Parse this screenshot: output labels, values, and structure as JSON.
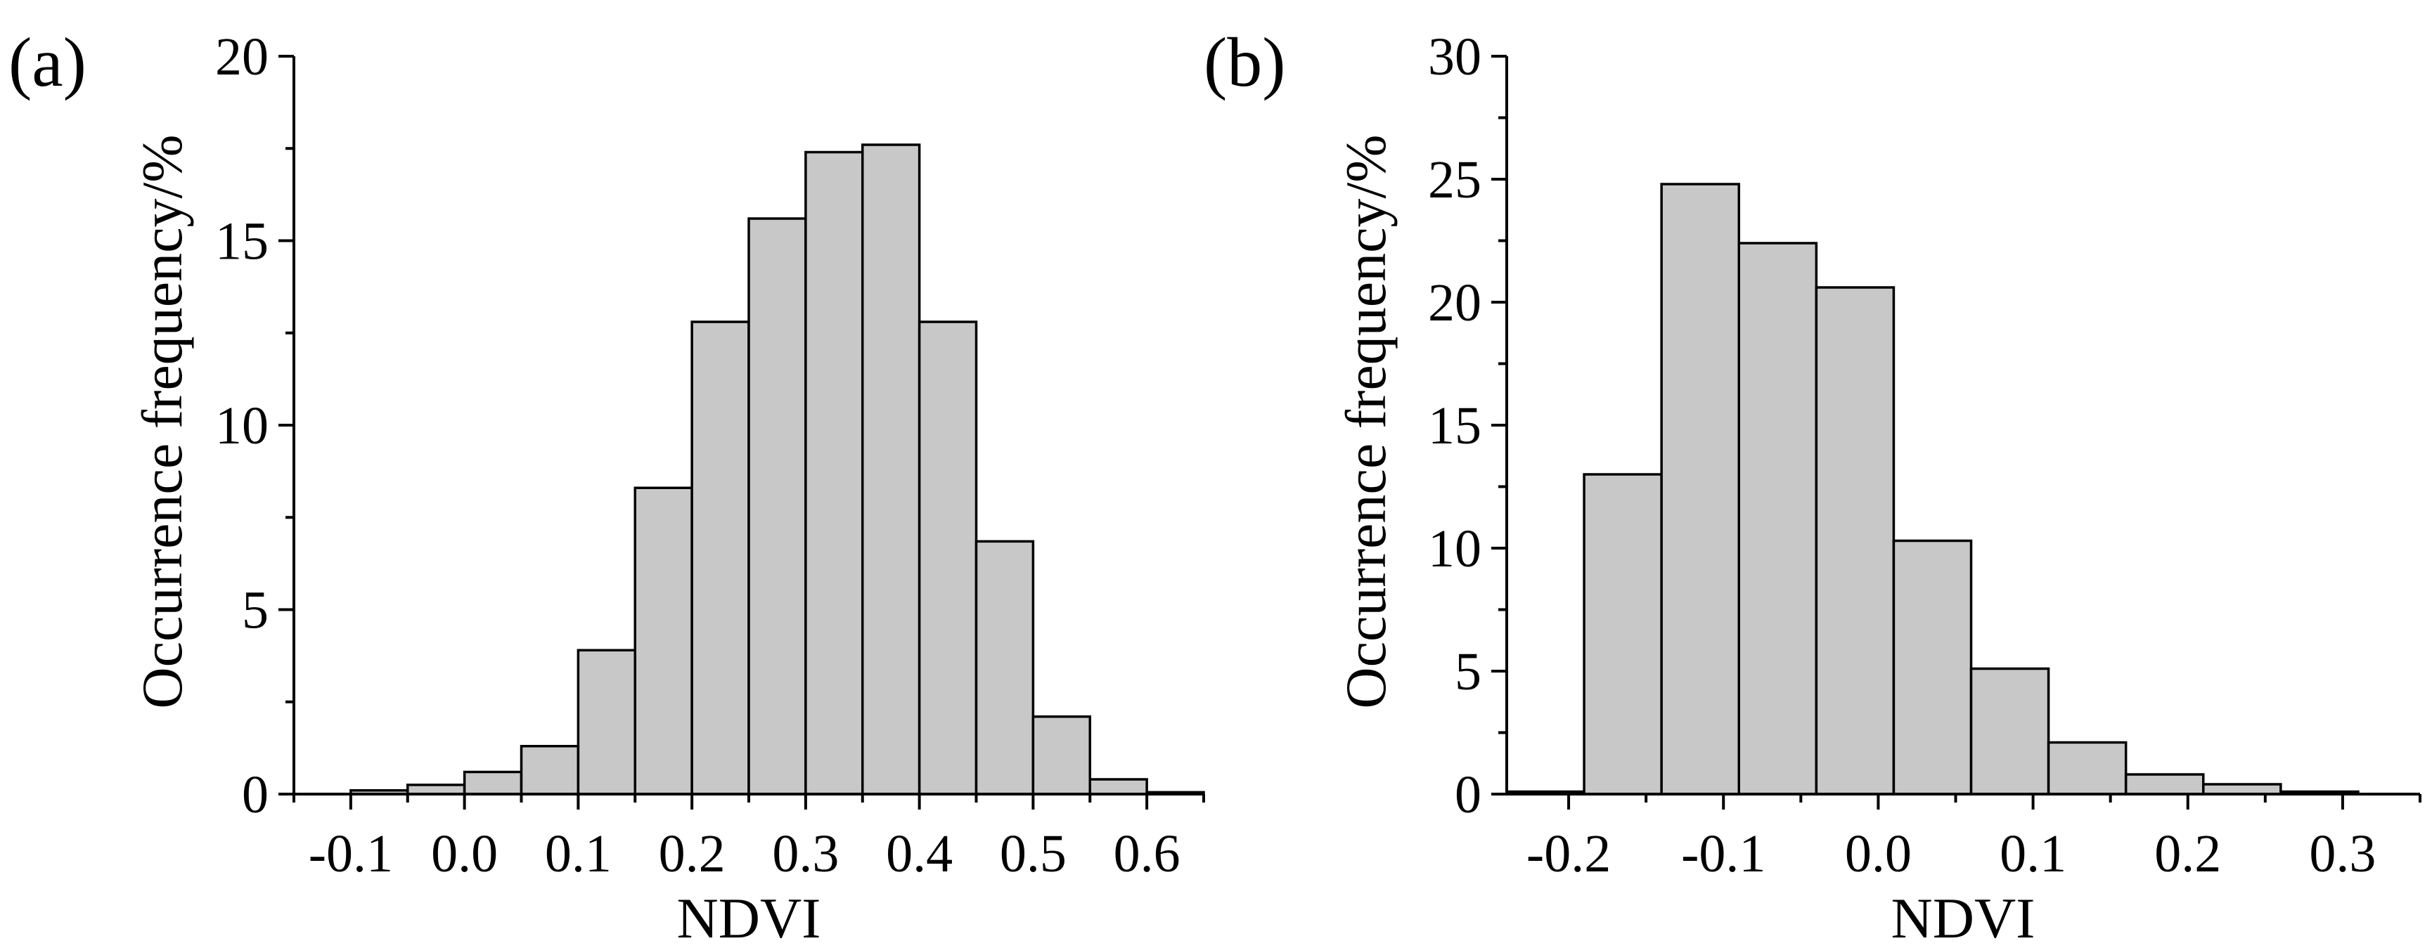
{
  "chart_data": [
    {
      "type": "bar",
      "panel_label": "(a)",
      "xlabel": "NDVI",
      "ylabel": "Occurrence frequency/%",
      "xlim": [
        -0.15,
        0.65
      ],
      "ylim": [
        0,
        20
      ],
      "bin_width": 0.05,
      "bin_starts": [
        -0.1,
        -0.05,
        0.0,
        0.05,
        0.1,
        0.15,
        0.2,
        0.25,
        0.3,
        0.35,
        0.4,
        0.45,
        0.5,
        0.55,
        0.6
      ],
      "values": [
        0.1,
        0.25,
        0.6,
        1.3,
        3.9,
        8.3,
        12.8,
        15.6,
        17.4,
        17.6,
        12.8,
        6.85,
        2.1,
        0.4,
        0.05
      ],
      "xticks": [
        -0.1,
        0.0,
        0.1,
        0.2,
        0.3,
        0.4,
        0.5,
        0.6
      ],
      "xtick_labels": [
        "-0.1",
        "0.0",
        "0.1",
        "0.2",
        "0.3",
        "0.4",
        "0.5",
        "0.6"
      ],
      "yticks": [
        0,
        5,
        10,
        15,
        20
      ],
      "ytick_labels": [
        "0",
        "5",
        "10",
        "15",
        "20"
      ]
    },
    {
      "type": "bar",
      "panel_label": "(b)",
      "xlabel": "NDVI",
      "ylabel": "Occurrence frequency/%",
      "xlim": [
        -0.24,
        0.35
      ],
      "ylim": [
        0,
        30
      ],
      "bin_width": 0.05,
      "bin_starts": [
        -0.24,
        -0.19,
        -0.14,
        -0.09,
        -0.04,
        0.01,
        0.06,
        0.11,
        0.16,
        0.21,
        0.26
      ],
      "values": [
        0.1,
        13.0,
        24.8,
        22.4,
        20.6,
        10.3,
        5.1,
        2.1,
        0.8,
        0.4,
        0.1
      ],
      "xticks": [
        -0.2,
        -0.1,
        0.0,
        0.1,
        0.2,
        0.3
      ],
      "xtick_labels": [
        "-0.2",
        "-0.1",
        "0.0",
        "0.1",
        "0.2",
        "0.3"
      ],
      "yticks": [
        0,
        5,
        10,
        15,
        20,
        25,
        30
      ],
      "ytick_labels": [
        "0",
        "5",
        "10",
        "15",
        "20",
        "25",
        "30"
      ]
    }
  ]
}
